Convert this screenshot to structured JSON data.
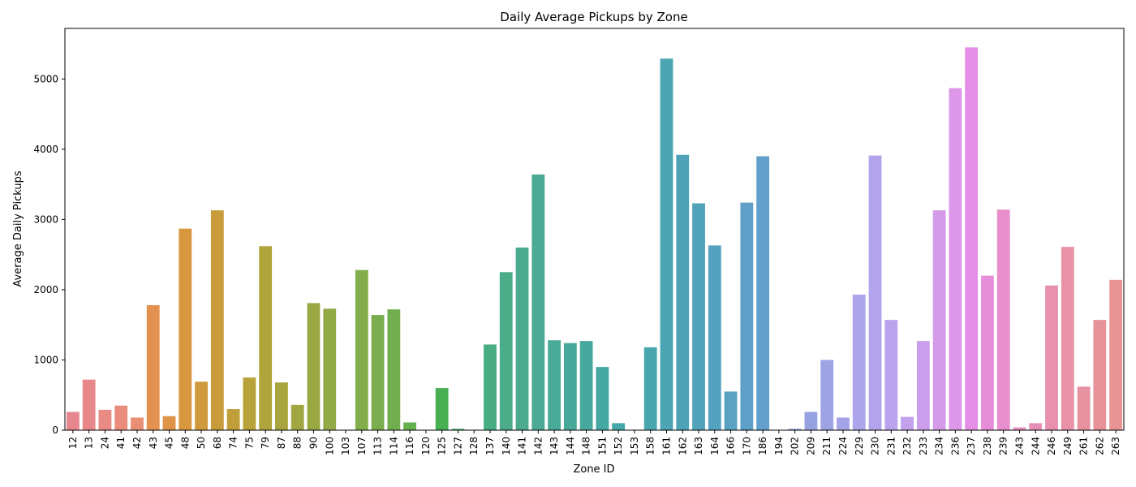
{
  "chart_data": {
    "type": "bar",
    "title": "Daily Average Pickups by Zone",
    "xlabel": "Zone ID",
    "ylabel": "Average Daily Pickups",
    "ylim": [
      0,
      5720
    ],
    "yticks": [
      0,
      1000,
      2000,
      3000,
      4000,
      5000
    ],
    "grid": false,
    "legend": "none",
    "categories": [
      "12",
      "13",
      "24",
      "41",
      "42",
      "43",
      "45",
      "48",
      "50",
      "68",
      "74",
      "75",
      "79",
      "87",
      "88",
      "90",
      "100",
      "103",
      "107",
      "113",
      "114",
      "116",
      "120",
      "125",
      "127",
      "128",
      "137",
      "140",
      "141",
      "142",
      "143",
      "144",
      "148",
      "151",
      "152",
      "153",
      "158",
      "161",
      "162",
      "163",
      "164",
      "166",
      "170",
      "186",
      "194",
      "202",
      "209",
      "211",
      "224",
      "229",
      "230",
      "231",
      "232",
      "233",
      "234",
      "236",
      "237",
      "238",
      "239",
      "243",
      "244",
      "246",
      "249",
      "261",
      "262",
      "263"
    ],
    "values": [
      260,
      720,
      290,
      350,
      180,
      1780,
      200,
      2870,
      690,
      3130,
      300,
      750,
      2620,
      680,
      360,
      1810,
      1730,
      3,
      2280,
      1640,
      1720,
      110,
      5,
      600,
      20,
      5,
      1220,
      2250,
      2600,
      3640,
      1280,
      1240,
      1270,
      900,
      100,
      5,
      1180,
      5290,
      3920,
      3230,
      2630,
      550,
      3240,
      3900,
      3,
      20,
      260,
      1000,
      180,
      1930,
      3910,
      1570,
      190,
      1270,
      3130,
      4870,
      5450,
      2200,
      3140,
      40,
      100,
      2060,
      2610,
      620,
      1570,
      2140
    ],
    "colors": [
      "#e8868e",
      "#e8888a",
      "#e98a85",
      "#e98c7e",
      "#ea8e76",
      "#e4904f",
      "#de9448",
      "#d8963f",
      "#cf9a3c",
      "#c89c3a",
      "#c09f3a",
      "#b8a23a",
      "#b0a43c",
      "#a8a53e",
      "#a0a740",
      "#9aa843",
      "#92a945",
      "#8aab48",
      "#82ad4a",
      "#7aad4d",
      "#72ae50",
      "#64b04f",
      "#5ab04f",
      "#48b052",
      "#45b06a",
      "#46ae78",
      "#48ad82",
      "#4aac89",
      "#4aab8f",
      "#4aaa93",
      "#49aa97",
      "#48a99b",
      "#47a99e",
      "#46a8a2",
      "#46a8a6",
      "#47a7aa",
      "#49a6ae",
      "#4ba5b2",
      "#4ea4b6",
      "#51a3ba",
      "#55a2be",
      "#5aa1c2",
      "#5ea0c7",
      "#629fcb",
      "#789fd5",
      "#8ca0dc",
      "#97a2e0",
      "#9ea3e4",
      "#a5a3e7",
      "#ada5ec",
      "#b3a3ec",
      "#bba2ec",
      "#c3a1ec",
      "#cb9eeb",
      "#d49be9",
      "#dc97e8",
      "#e48ee6",
      "#e68ed8",
      "#e78ecc",
      "#e78fc1",
      "#e790b7",
      "#e791af",
      "#e792a7",
      "#e792a0",
      "#e7939a",
      "#e89494"
    ]
  }
}
